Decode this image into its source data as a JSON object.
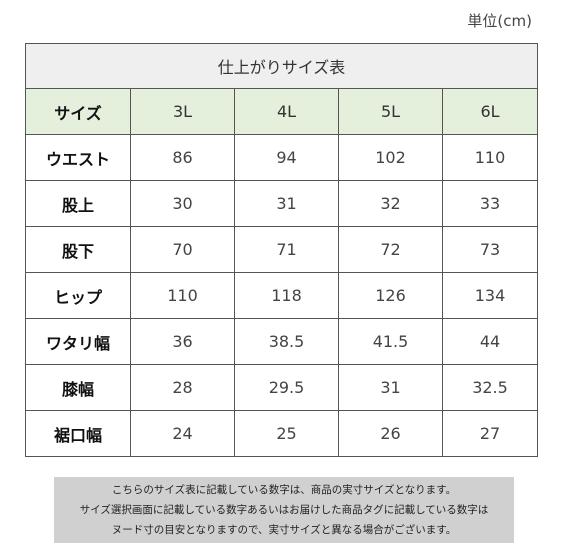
{
  "unit_label": "単位(cm)",
  "table": {
    "title": "仕上がりサイズ表",
    "header_label": "サイズ",
    "sizes": [
      "3L",
      "4L",
      "5L",
      "6L"
    ],
    "rows": [
      {
        "label": "ウエスト",
        "values": [
          "86",
          "94",
          "102",
          "110"
        ]
      },
      {
        "label": "股上",
        "values": [
          "30",
          "31",
          "32",
          "33"
        ]
      },
      {
        "label": "股下",
        "values": [
          "70",
          "71",
          "72",
          "73"
        ]
      },
      {
        "label": "ヒップ",
        "values": [
          "110",
          "118",
          "126",
          "134"
        ]
      },
      {
        "label": "ワタリ幅",
        "values": [
          "36",
          "38.5",
          "41.5",
          "44"
        ]
      },
      {
        "label": "膝幅",
        "values": [
          "28",
          "29.5",
          "31",
          "32.5"
        ]
      },
      {
        "label": "裾口幅",
        "values": [
          "24",
          "25",
          "26",
          "27"
        ]
      }
    ]
  },
  "note": {
    "lines": [
      "こちらのサイズ表に記載している数字は、商品の実寸サイズとなります。",
      "サイズ選択画面に記載している数字あるいはお届けした商品タグに記載している数字は",
      "ヌード寸の目安となりますので、実寸サイズと異なる場合がございます。"
    ]
  },
  "colors": {
    "header_bg": "#e4f0dc",
    "title_bg": "#efefef",
    "note_bg": "#d0d0d0",
    "border": "#555555"
  }
}
